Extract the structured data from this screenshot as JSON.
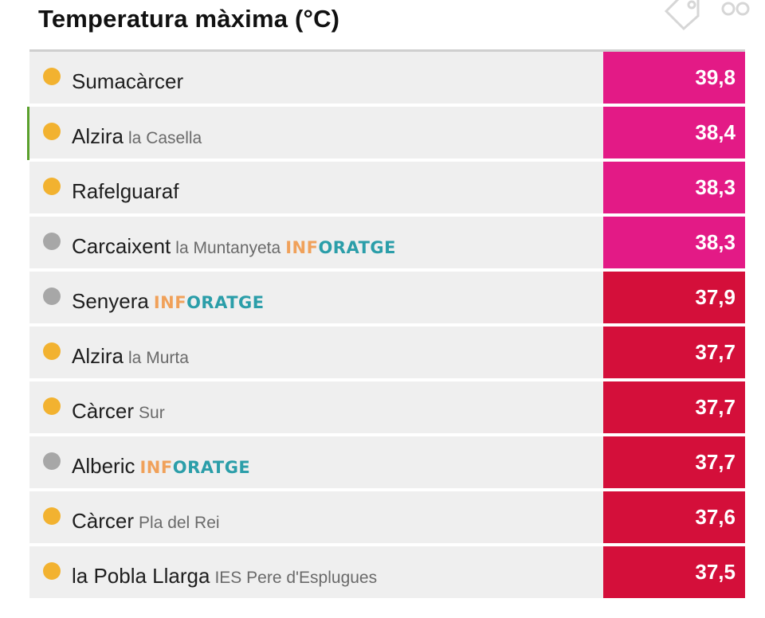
{
  "title": "Temperatura màxima (°C)",
  "top_icons": [
    "tag-icon",
    "link-icon"
  ],
  "rows": [
    {
      "place": "Sumacàrcer",
      "detail": "",
      "source": "",
      "value": "39,8",
      "dot": "orange",
      "color": "#e31a86"
    },
    {
      "place": "Alzira",
      "detail": "la Casella",
      "source": "",
      "value": "38,4",
      "dot": "orange",
      "color": "#e31a86",
      "highlighted": true
    },
    {
      "place": "Rafelguaraf",
      "detail": "",
      "source": "",
      "value": "38,3",
      "dot": "orange",
      "color": "#e31a86"
    },
    {
      "place": "Carcaixent",
      "detail": "la Muntanyeta",
      "source": "INFORATGE",
      "value": "38,3",
      "dot": "gray",
      "color": "#e31a86"
    },
    {
      "place": "Senyera",
      "detail": "",
      "source": "INFORATGE",
      "value": "37,9",
      "dot": "gray",
      "color": "#d40f3a"
    },
    {
      "place": "Alzira",
      "detail": "la Murta",
      "source": "",
      "value": "37,7",
      "dot": "orange",
      "color": "#d40f3a"
    },
    {
      "place": "Càrcer",
      "detail": "Sur",
      "source": "",
      "value": "37,7",
      "dot": "orange",
      "color": "#d40f3a"
    },
    {
      "place": "Alberic",
      "detail": "",
      "source": "INFORATGE",
      "value": "37,7",
      "dot": "gray",
      "color": "#d40f3a"
    },
    {
      "place": "Càrcer",
      "detail": "Pla del Rei",
      "source": "",
      "value": "37,6",
      "dot": "orange",
      "color": "#d40f3a"
    },
    {
      "place": "la Pobla Llarga",
      "detail": "IES Pere d'Esplugues",
      "source": "",
      "value": "37,5",
      "dot": "orange",
      "color": "#d40f3a"
    }
  ],
  "infoatge_parts": {
    "a": "INF",
    "b": "ORATGE"
  }
}
